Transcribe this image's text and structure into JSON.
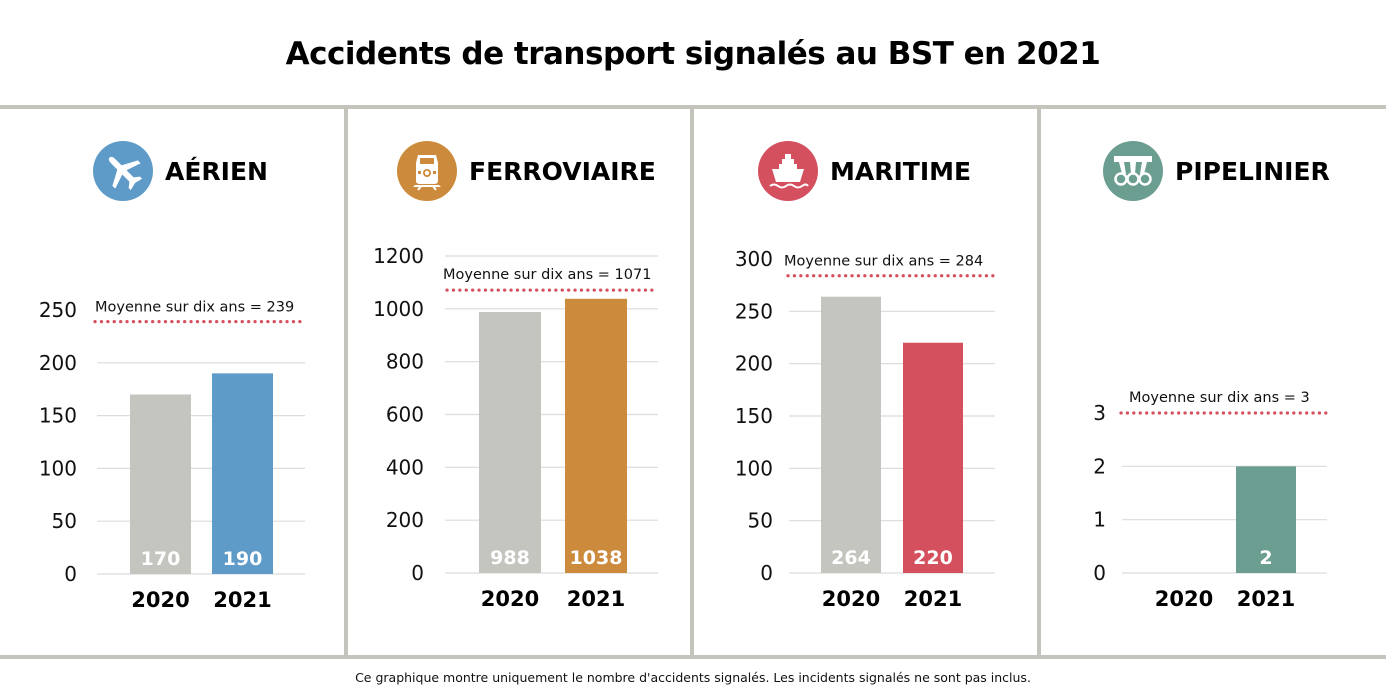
{
  "title": "Accidents de transport signalés au BST en 2021",
  "footnote": "Ce graphique montre uniquement le nombre d'accidents signalés. Les incidents signalés ne sont pas inclus.",
  "colors": {
    "prior_year_bar": "#c4c5bf",
    "average_line": "#d4505e",
    "divider": "#c4c4bc",
    "gridline": "#dcdcdc"
  },
  "panels": [
    {
      "label": "AÉRIEN",
      "icon": "airplane-icon",
      "color": "#5f9bc8"
    },
    {
      "label": "FERROVIAIRE",
      "icon": "train-icon",
      "color": "#cc8b3c"
    },
    {
      "label": "MARITIME",
      "icon": "ship-icon",
      "color": "#d4505e"
    },
    {
      "label": "PIPELINIER",
      "icon": "pipeline-icon",
      "color": "#6b9e91"
    }
  ],
  "chart_data": [
    {
      "type": "bar",
      "title": "AÉRIEN",
      "categories": [
        "2020",
        "2021"
      ],
      "values": [
        170,
        190
      ],
      "ylim": [
        0,
        250
      ],
      "yticks": [
        0,
        50,
        100,
        150,
        200,
        250
      ],
      "average": {
        "label": "Moyenne sur dix ans = 239",
        "value": 239
      },
      "grid": true
    },
    {
      "type": "bar",
      "title": "FERROVIAIRE",
      "categories": [
        "2020",
        "2021"
      ],
      "values": [
        988,
        1038
      ],
      "ylim": [
        0,
        1200
      ],
      "yticks": [
        0,
        200,
        400,
        600,
        800,
        1000,
        1200
      ],
      "average": {
        "label": "Moyenne sur dix ans = 1071",
        "value": 1071
      },
      "grid": true
    },
    {
      "type": "bar",
      "title": "MARITIME",
      "categories": [
        "2020",
        "2021"
      ],
      "values": [
        264,
        220
      ],
      "ylim": [
        0,
        300
      ],
      "yticks": [
        0,
        50,
        100,
        150,
        200,
        250,
        300
      ],
      "average": {
        "label": "Moyenne sur dix ans = 284",
        "value": 284
      },
      "grid": true
    },
    {
      "type": "bar",
      "title": "PIPELINIER",
      "categories": [
        "2020",
        "2021"
      ],
      "values": [
        0,
        2
      ],
      "ylim": [
        0,
        3
      ],
      "yticks": [
        0,
        1,
        2,
        3
      ],
      "average": {
        "label": "Moyenne sur dix ans = 3",
        "value": 3
      },
      "grid": true
    }
  ]
}
